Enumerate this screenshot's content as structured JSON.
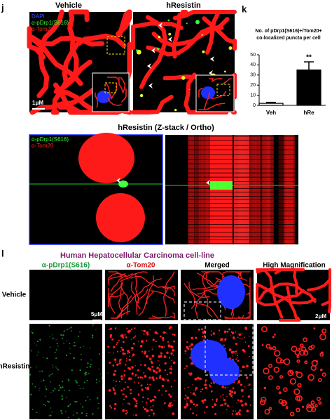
{
  "panel_j": {
    "label": "j",
    "columns": [
      "Vehicle",
      "hResistin"
    ],
    "legend": [
      "DAPI",
      "α-pDrp1(S616)",
      "α-Tom20"
    ],
    "scale_bar": "1μM",
    "ortho_title": "hResistin (Z-stack / Ortho)",
    "ortho_legend": [
      "α-pDrp1(S616)",
      "α-Tom20"
    ]
  },
  "panel_k": {
    "label": "k"
  },
  "chart_data": {
    "type": "bar",
    "title": [
      "No. of pDrp1(S616)+/Tom20+",
      "co-localized puncta per cell"
    ],
    "categories": [
      "Veh",
      "hRe"
    ],
    "values": [
      2,
      35
    ],
    "errors": [
      1,
      8
    ],
    "colors": [
      "#ffffff",
      "#000000"
    ],
    "ylim": [
      0,
      50
    ],
    "yticks": [
      0,
      10,
      20,
      30,
      40,
      50
    ],
    "significance": "**"
  },
  "panel_l": {
    "label": "l",
    "title": "Human Hepatocellular Carcinoma cell-line",
    "columns": [
      "α-pDrp1(S616)",
      "α-Tom20",
      "Merged",
      "High Magnification"
    ],
    "rows": [
      "Vehicle",
      "hResistin"
    ],
    "scale_bars": [
      "5μM",
      "2μM"
    ]
  }
}
